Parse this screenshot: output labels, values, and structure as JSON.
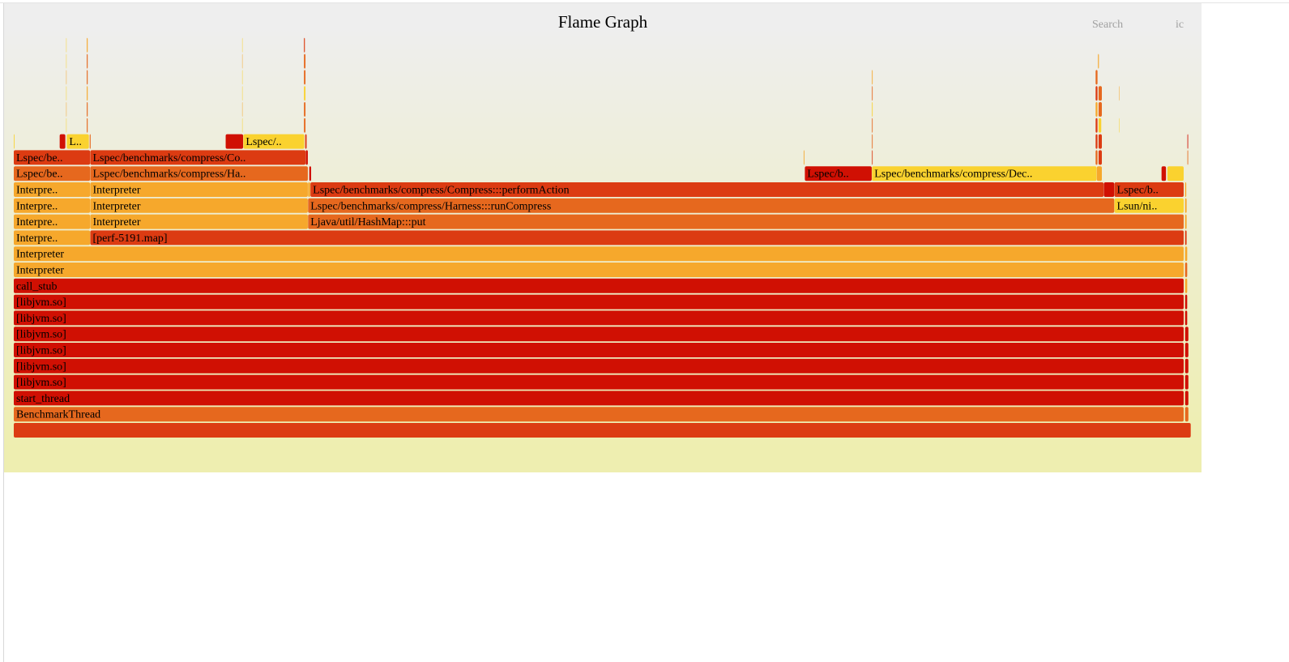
{
  "window": {
    "title": "Flame Graph"
  },
  "controls": {
    "search_label": "Search",
    "ic_label": "ic"
  },
  "chart_data": {
    "type": "flamegraph",
    "title": "Flame Graph",
    "total_samples": 1000,
    "frames": [
      {
        "label": "",
        "d": 0,
        "s": 0,
        "w": 1000,
        "c": "#dc3b12"
      },
      {
        "label": "BenchmarkThread",
        "d": 1,
        "s": 0,
        "w": 994,
        "c": "#e6681e"
      },
      {
        "label": "",
        "d": 1,
        "s": 995,
        "w": 3,
        "c": "#e6681e"
      },
      {
        "label": "start_thread",
        "d": 2,
        "s": 0,
        "w": 994,
        "c": "#d01003"
      },
      {
        "label": "",
        "d": 2,
        "s": 995,
        "w": 3,
        "c": "#d01003"
      },
      {
        "label": "[libjvm.so]",
        "d": 3,
        "s": 0,
        "w": 994,
        "c": "#d01003"
      },
      {
        "label": "",
        "d": 3,
        "s": 995,
        "w": 3,
        "c": "#d01003"
      },
      {
        "label": "[libjvm.so]",
        "d": 4,
        "s": 0,
        "w": 994,
        "c": "#d01003"
      },
      {
        "label": "",
        "d": 4,
        "s": 995,
        "w": 3,
        "c": "#d01003"
      },
      {
        "label": "[libjvm.so]",
        "d": 5,
        "s": 0,
        "w": 994,
        "c": "#d01003"
      },
      {
        "label": "",
        "d": 5,
        "s": 995,
        "w": 3,
        "c": "#d01003"
      },
      {
        "label": "[libjvm.so]",
        "d": 6,
        "s": 0,
        "w": 994,
        "c": "#d01003"
      },
      {
        "label": "",
        "d": 6,
        "s": 995,
        "w": 3,
        "c": "#d01003"
      },
      {
        "label": "[libjvm.so]",
        "d": 7,
        "s": 0,
        "w": 994,
        "c": "#d01003"
      },
      {
        "label": "",
        "d": 7,
        "s": 995,
        "w": 2,
        "c": "#d01003"
      },
      {
        "label": "[libjvm.so]",
        "d": 8,
        "s": 0,
        "w": 994,
        "c": "#d01003"
      },
      {
        "label": "",
        "d": 8,
        "s": 995,
        "w": 2,
        "c": "#d01003"
      },
      {
        "label": "call_stub",
        "d": 9,
        "s": 0,
        "w": 994,
        "c": "#d01003"
      },
      {
        "label": "",
        "d": 9,
        "s": 995,
        "w": 2,
        "c": "#f6a82c"
      },
      {
        "label": "Interpreter",
        "d": 10,
        "s": 0,
        "w": 994,
        "c": "#f6a82c"
      },
      {
        "label": "",
        "d": 10,
        "s": 995,
        "w": 2,
        "c": "#e6681e"
      },
      {
        "label": "Interpreter",
        "d": 11,
        "s": 0,
        "w": 994,
        "c": "#f6a82c"
      },
      {
        "label": "",
        "d": 11,
        "s": 995,
        "w": 2,
        "c": "#f6a82c"
      },
      {
        "label": "Interpre..",
        "d": 12,
        "s": 0,
        "w": 65,
        "c": "#f6a82c"
      },
      {
        "label": "[perf-5191.map]",
        "d": 12,
        "s": 65,
        "w": 929,
        "c": "#dc3b12"
      },
      {
        "label": "",
        "d": 12,
        "s": 995,
        "w": 1.5,
        "c": "#dc3b12"
      },
      {
        "label": "Interpre..",
        "d": 13,
        "s": 0,
        "w": 65,
        "c": "#f6a82c"
      },
      {
        "label": "Interpreter",
        "d": 13,
        "s": 65,
        "w": 185,
        "c": "#f6a82c"
      },
      {
        "label": "Ljava/util/HashMap:::put",
        "d": 13,
        "s": 250,
        "w": 744,
        "c": "#e6681e"
      },
      {
        "label": "",
        "d": 13,
        "s": 995,
        "w": 1.5,
        "c": "#f6a82c"
      },
      {
        "label": "Interpre..",
        "d": 14,
        "s": 0,
        "w": 65,
        "c": "#f6a82c"
      },
      {
        "label": "Interpreter",
        "d": 14,
        "s": 65,
        "w": 185,
        "c": "#f6a82c"
      },
      {
        "label": "Lspec/benchmarks/compress/Harness:::runCompress",
        "d": 14,
        "s": 250,
        "w": 685,
        "c": "#e6681e"
      },
      {
        "label": "Lsun/ni..",
        "d": 14,
        "s": 935,
        "w": 59,
        "c": "#fad22f"
      },
      {
        "label": "",
        "d": 14,
        "s": 995,
        "w": 1.5,
        "c": "#f6a82c"
      },
      {
        "label": "Interpre..",
        "d": 15,
        "s": 0,
        "w": 65,
        "c": "#f6a82c"
      },
      {
        "label": "Interpreter",
        "d": 15,
        "s": 65,
        "w": 185,
        "c": "#f6a82c"
      },
      {
        "label": "",
        "d": 15,
        "s": 250,
        "w": 2,
        "c": "#f6a82c"
      },
      {
        "label": "Lspec/benchmarks/compress/Compress:::performAction",
        "d": 15,
        "s": 252,
        "w": 674,
        "c": "#dc3b12"
      },
      {
        "label": "",
        "d": 15,
        "s": 926,
        "w": 9,
        "c": "#d01003"
      },
      {
        "label": "Lspec/b..",
        "d": 15,
        "s": 935,
        "w": 59,
        "c": "#dc3b12"
      },
      {
        "label": "",
        "d": 15,
        "s": 995,
        "w": 1.2,
        "c": "#f6a82c"
      },
      {
        "label": "Lspec/be..",
        "d": 16,
        "s": 0,
        "w": 65,
        "c": "#e6681e"
      },
      {
        "label": "Lspec/benchmarks/compress/Ha..",
        "d": 16,
        "s": 65,
        "w": 185,
        "c": "#e6681e"
      },
      {
        "label": "",
        "d": 16,
        "s": 251,
        "w": 1.8,
        "c": "#d01003"
      },
      {
        "label": "Lspec/b..",
        "d": 16,
        "s": 672,
        "w": 57,
        "c": "#d01003"
      },
      {
        "label": "Lspec/benchmarks/compress/Dec..",
        "d": 16,
        "s": 729,
        "w": 191,
        "c": "#fad22f"
      },
      {
        "label": "",
        "d": 16,
        "s": 920,
        "w": 4.5,
        "c": "#f6a82c"
      },
      {
        "label": "",
        "d": 16,
        "s": 975,
        "w": 4,
        "c": "#d01003"
      },
      {
        "label": "",
        "d": 16,
        "s": 980,
        "w": 14,
        "c": "#fad22f"
      },
      {
        "label": "Lspec/be..",
        "d": 17,
        "s": 0,
        "w": 65,
        "c": "#dc3b12"
      },
      {
        "label": "Lspec/benchmarks/compress/Co..",
        "d": 17,
        "s": 65,
        "w": 183,
        "c": "#dc3b12"
      },
      {
        "label": "",
        "d": 17,
        "s": 248,
        "w": 2,
        "c": "#d01003"
      },
      {
        "label": "",
        "d": 17,
        "s": 671,
        "w": 0.8,
        "c": "#f6a82c"
      },
      {
        "label": "",
        "d": 17,
        "s": 729,
        "w": 0.8,
        "c": "#dc3b12"
      },
      {
        "label": "",
        "d": 17,
        "s": 919,
        "w": 1.8,
        "c": "#e6681e"
      },
      {
        "label": "",
        "d": 17,
        "s": 921.5,
        "w": 3,
        "c": "#dc3b12"
      },
      {
        "label": "",
        "d": 17,
        "s": 997,
        "w": 0.8,
        "c": "#e6681e"
      },
      {
        "label": "",
        "d": 18,
        "s": 0,
        "w": 0.8,
        "c": "#fad22f"
      },
      {
        "label": "",
        "d": 18,
        "s": 39,
        "w": 5,
        "c": "#d01003"
      },
      {
        "label": "L..",
        "d": 18,
        "s": 45,
        "w": 19,
        "c": "#fad22f"
      },
      {
        "label": "",
        "d": 18,
        "s": 64.5,
        "w": 1,
        "c": "#e6681e"
      },
      {
        "label": "",
        "d": 18,
        "s": 180,
        "w": 15,
        "c": "#d01003"
      },
      {
        "label": "Lspec/..",
        "d": 18,
        "s": 195,
        "w": 52,
        "c": "#fad22f"
      },
      {
        "label": "",
        "d": 18,
        "s": 247.5,
        "w": 1.5,
        "c": "#dc3b12"
      },
      {
        "label": "",
        "d": 18,
        "s": 729,
        "w": 0.8,
        "c": "#e6681e"
      },
      {
        "label": "",
        "d": 18,
        "s": 919,
        "w": 1.8,
        "c": "#dc3b12"
      },
      {
        "label": "",
        "d": 18,
        "s": 921.5,
        "w": 3,
        "c": "#dc3b12"
      },
      {
        "label": "",
        "d": 18,
        "s": 997,
        "w": 0.8,
        "c": "#d01003"
      },
      {
        "label": "",
        "d": 19,
        "s": 44.5,
        "w": 0.5,
        "c": "#fad22f"
      },
      {
        "label": "",
        "d": 19,
        "s": 62,
        "w": 1,
        "c": "#e6681e"
      },
      {
        "label": "",
        "d": 19,
        "s": 194,
        "w": 0.5,
        "c": "#fad22f"
      },
      {
        "label": "",
        "d": 19,
        "s": 246.5,
        "w": 1.5,
        "c": "#e6681e"
      },
      {
        "label": "",
        "d": 19,
        "s": 729,
        "w": 0.8,
        "c": "#e6681e"
      },
      {
        "label": "",
        "d": 19,
        "s": 919,
        "w": 1.8,
        "c": "#dc3b12"
      },
      {
        "label": "",
        "d": 19,
        "s": 921.5,
        "w": 2.5,
        "c": "#fad22f"
      },
      {
        "label": "",
        "d": 19,
        "s": 939,
        "w": 0.5,
        "c": "#fad22f"
      },
      {
        "label": "",
        "d": 20,
        "s": 44.5,
        "w": 0.5,
        "c": "#f6a82c"
      },
      {
        "label": "",
        "d": 20,
        "s": 62,
        "w": 1,
        "c": "#e6681e"
      },
      {
        "label": "",
        "d": 20,
        "s": 194,
        "w": 0.5,
        "c": "#f6a82c"
      },
      {
        "label": "",
        "d": 20,
        "s": 246.5,
        "w": 1.5,
        "c": "#e6681e"
      },
      {
        "label": "",
        "d": 20,
        "s": 729,
        "w": 0.8,
        "c": "#fad22f"
      },
      {
        "label": "",
        "d": 20,
        "s": 919,
        "w": 1.8,
        "c": "#f6a82c"
      },
      {
        "label": "",
        "d": 20,
        "s": 921.5,
        "w": 3,
        "c": "#e6681e"
      },
      {
        "label": "",
        "d": 21,
        "s": 44.5,
        "w": 0.5,
        "c": "#fad22f"
      },
      {
        "label": "",
        "d": 21,
        "s": 62,
        "w": 1,
        "c": "#f6a82c"
      },
      {
        "label": "",
        "d": 21,
        "s": 194,
        "w": 0.5,
        "c": "#fad22f"
      },
      {
        "label": "",
        "d": 21,
        "s": 246.5,
        "w": 1.5,
        "c": "#fad22f"
      },
      {
        "label": "",
        "d": 21,
        "s": 729,
        "w": 0.8,
        "c": "#e6681e"
      },
      {
        "label": "",
        "d": 21,
        "s": 919,
        "w": 1.8,
        "c": "#dc3b12"
      },
      {
        "label": "",
        "d": 21,
        "s": 921.5,
        "w": 3,
        "c": "#e6681e"
      },
      {
        "label": "",
        "d": 21,
        "s": 939,
        "w": 0.5,
        "c": "#f6a82c"
      },
      {
        "label": "",
        "d": 22,
        "s": 44.5,
        "w": 0.5,
        "c": "#f6a82c"
      },
      {
        "label": "",
        "d": 22,
        "s": 62,
        "w": 1,
        "c": "#e6681e"
      },
      {
        "label": "",
        "d": 22,
        "s": 194,
        "w": 0.5,
        "c": "#fad22f"
      },
      {
        "label": "",
        "d": 22,
        "s": 246.5,
        "w": 1.5,
        "c": "#e6681e"
      },
      {
        "label": "",
        "d": 22,
        "s": 729,
        "w": 0.8,
        "c": "#f6a82c"
      },
      {
        "label": "",
        "d": 22,
        "s": 919,
        "w": 1.8,
        "c": "#e6681e"
      },
      {
        "label": "",
        "d": 23,
        "s": 44.5,
        "w": 0.5,
        "c": "#fad22f"
      },
      {
        "label": "",
        "d": 23,
        "s": 62,
        "w": 1,
        "c": "#e6681e"
      },
      {
        "label": "",
        "d": 23,
        "s": 194,
        "w": 0.5,
        "c": "#f6a82c"
      },
      {
        "label": "",
        "d": 23,
        "s": 246.5,
        "w": 1.5,
        "c": "#e6681e"
      },
      {
        "label": "",
        "d": 23,
        "s": 921,
        "w": 1,
        "c": "#f6a82c"
      },
      {
        "label": "",
        "d": 24,
        "s": 44.5,
        "w": 0.5,
        "c": "#fad22f"
      },
      {
        "label": "",
        "d": 24,
        "s": 62,
        "w": 1,
        "c": "#f6a82c"
      },
      {
        "label": "",
        "d": 24,
        "s": 194,
        "w": 0.5,
        "c": "#fad22f"
      },
      {
        "label": "",
        "d": 24,
        "s": 246.5,
        "w": 1,
        "c": "#dc3b12"
      }
    ]
  }
}
